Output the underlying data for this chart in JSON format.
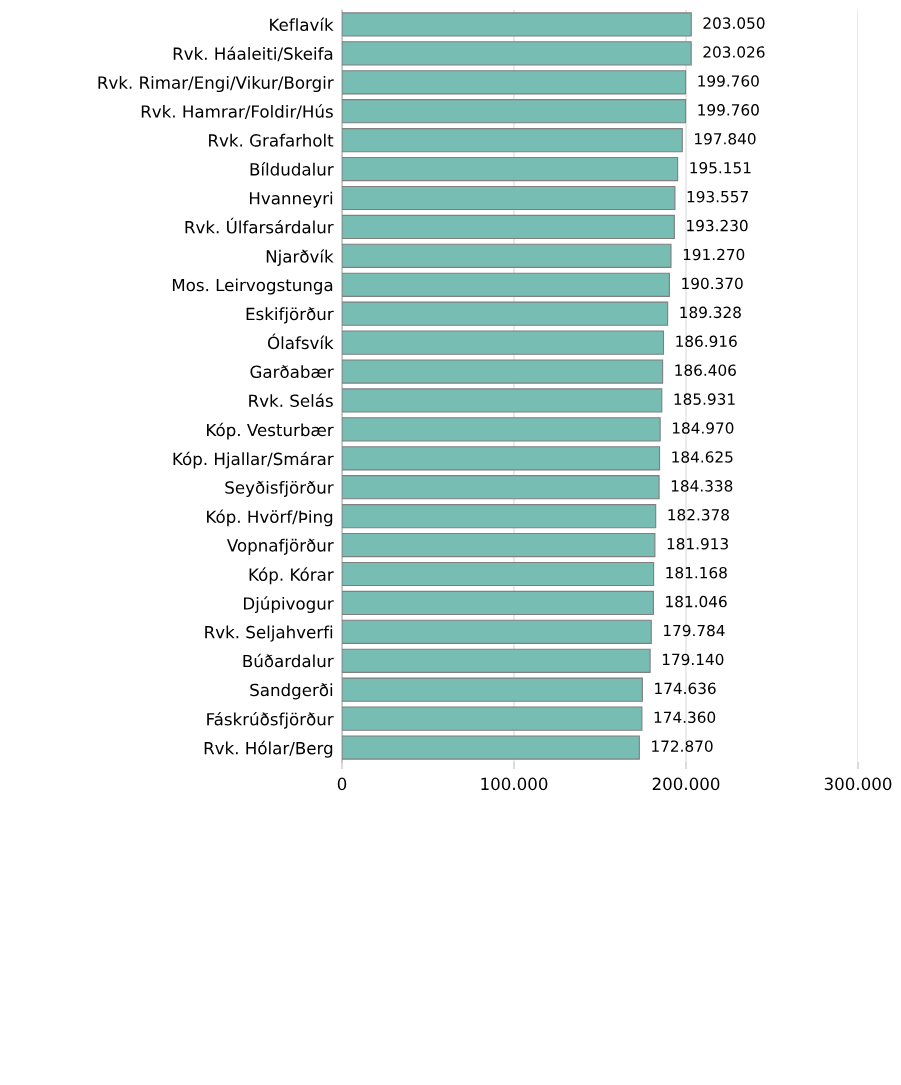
{
  "chart_data": {
    "type": "bar",
    "orientation": "horizontal",
    "categories": [
      "Keflavík",
      "Rvk. Háaleiti/Skeifa",
      "Rvk. Rimar/Engi/Vikur/Borgir",
      "Rvk. Hamrar/Foldir/Hús",
      "Rvk. Grafarholt",
      "Bíldudalur",
      "Hvanneyri",
      "Rvk. Úlfarsárdalur",
      "Njarðvík",
      "Mos. Leirvogstunga",
      "Eskifjörður",
      "Ólafsvík",
      "Garðabær",
      "Rvk. Selás",
      "Kóp. Vesturbær",
      "Kóp. Hjallar/Smárar",
      "Seyðisfjörður",
      "Kóp. Hvörf/Þing",
      "Vopnafjörður",
      "Kóp. Kórar",
      "Djúpivogur",
      "Rvk. Seljahverfi",
      "Búðardalur",
      "Sandgerði",
      "Fáskrúðsfjörður",
      "Rvk. Hólar/Berg"
    ],
    "values": [
      203050,
      203026,
      199760,
      199760,
      197840,
      195151,
      193557,
      193230,
      191270,
      190370,
      189328,
      186916,
      186406,
      185931,
      184970,
      184625,
      184338,
      182378,
      181913,
      181168,
      181046,
      179784,
      179140,
      174636,
      174360,
      172870
    ],
    "value_labels": [
      "203.050",
      "203.026",
      "199.760",
      "199.760",
      "197.840",
      "195.151",
      "193.557",
      "193.230",
      "191.270",
      "190.370",
      "189.328",
      "186.916",
      "186.406",
      "185.931",
      "184.970",
      "184.625",
      "184.338",
      "182.378",
      "181.913",
      "181.168",
      "181.046",
      "179.784",
      "179.140",
      "174.636",
      "174.360",
      "172.870"
    ],
    "color": "#77bdb3",
    "xlim": [
      0,
      300000
    ],
    "xticks": [
      0,
      {
        "value": 100000,
        "label": "100.000"
      },
      {
        "value": 200000,
        "label": "200.000"
      },
      {
        "value": 300000,
        "label": "300.000"
      }
    ],
    "grid": "x"
  }
}
